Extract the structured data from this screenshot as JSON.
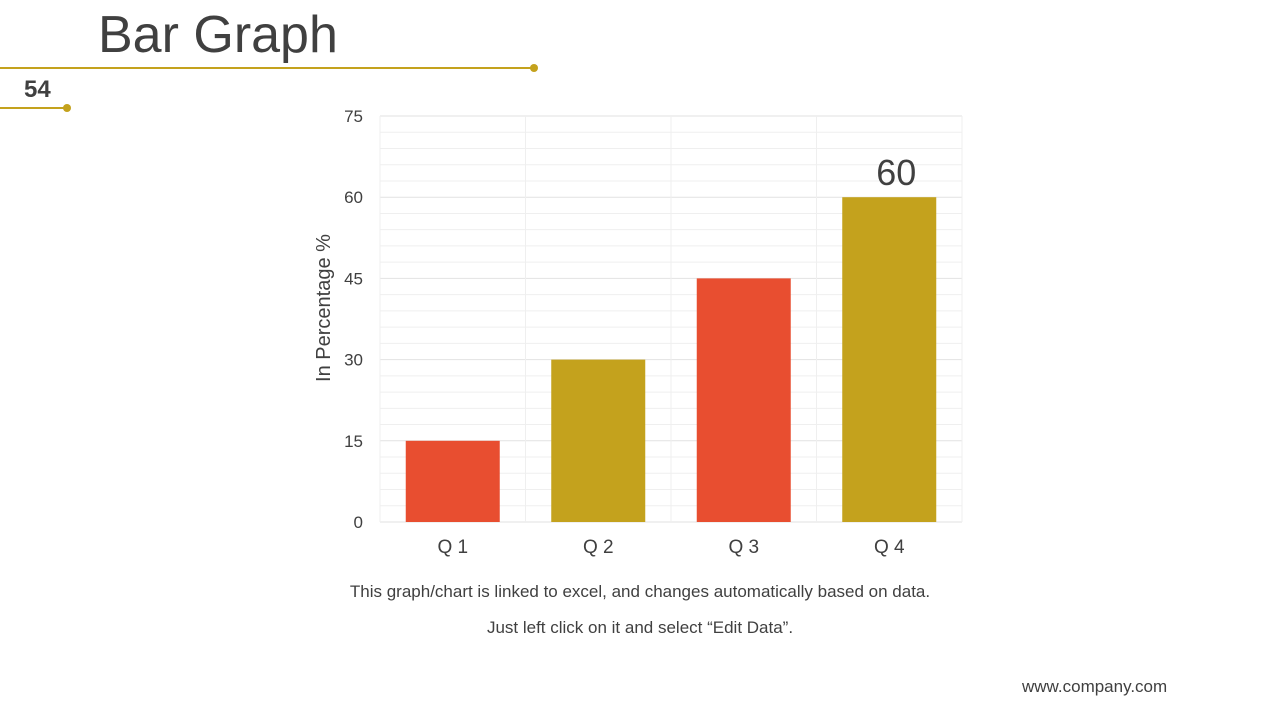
{
  "slide": {
    "title": "Bar Graph",
    "number": "54",
    "accent_color": "#c4a21d"
  },
  "chart_data": {
    "type": "bar",
    "categories": [
      "Q 1",
      "Q 2",
      "Q 3",
      "Q 4"
    ],
    "values": [
      15,
      30,
      45,
      60
    ],
    "bar_colors": [
      "#e84e30",
      "#c4a21d",
      "#e84e30",
      "#c4a21d"
    ],
    "data_labels": [
      {
        "category": "Q 4",
        "text": "60"
      }
    ],
    "title": "",
    "xlabel": "",
    "ylabel": "In Percentage %",
    "ylim": [
      0,
      75
    ],
    "yticks": [
      0,
      15,
      30,
      45,
      60,
      75
    ],
    "grid": true,
    "legend": "none"
  },
  "notes": {
    "line1": "This graph/chart is linked to excel, and changes automatically based on data.",
    "line2": "Just left click on it and select “Edit Data”."
  },
  "footer": {
    "website": "www.company.com"
  }
}
